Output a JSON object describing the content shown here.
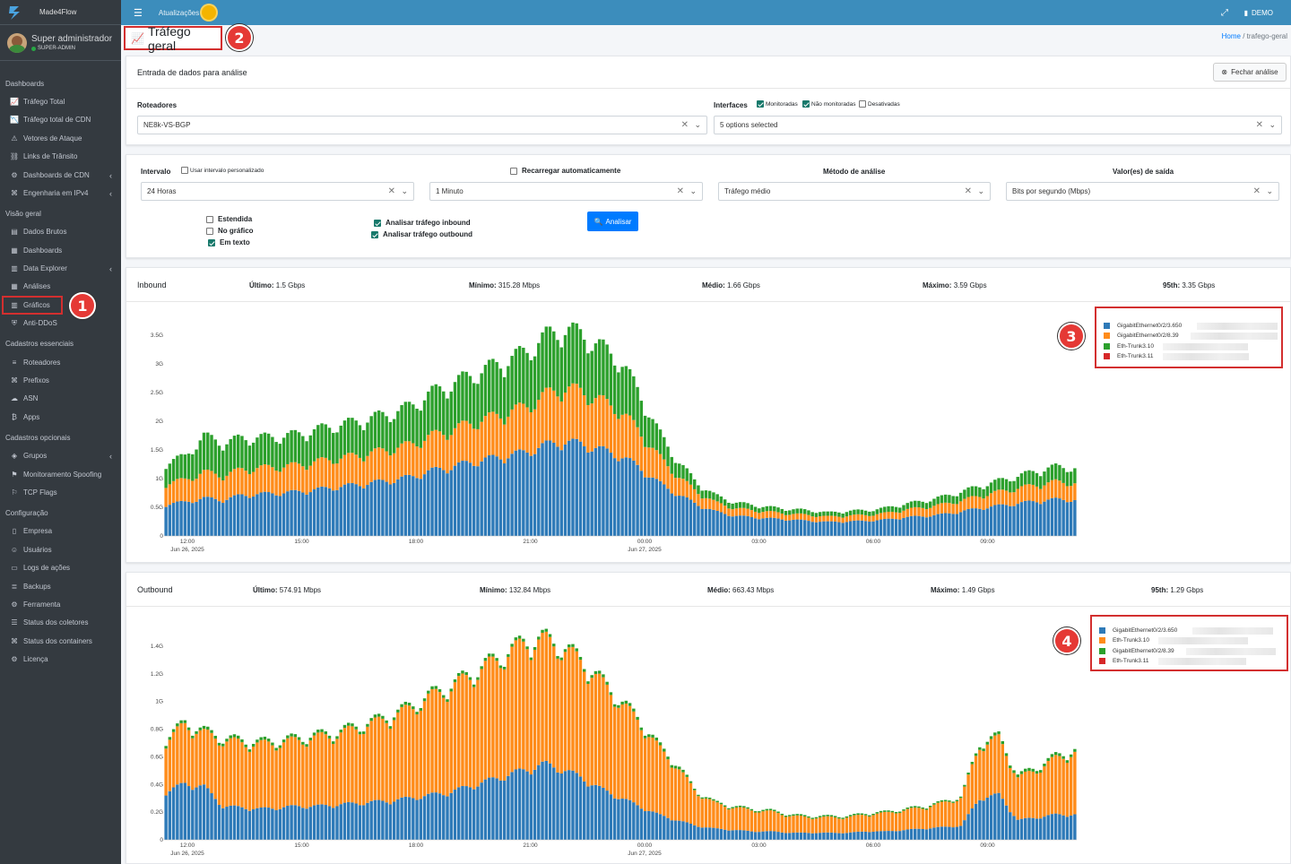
{
  "app": {
    "brand": "Made4Flow"
  },
  "user": {
    "name": "Super administrador",
    "role": "SUPER-ADMIN"
  },
  "sidebar": {
    "sections": [
      {
        "title": "Dashboards",
        "items": [
          {
            "label": "Tráfego Total",
            "icon": "area-chart-icon"
          },
          {
            "label": "Tráfego total de CDN",
            "icon": "chart-line-icon"
          },
          {
            "label": "Vetores de Ataque",
            "icon": "warning-icon"
          },
          {
            "label": "Links de Trânsito",
            "icon": "network-icon"
          },
          {
            "label": "Dashboards de CDN",
            "icon": "cdn-icon",
            "has_children": true
          },
          {
            "label": "Engenharia em IPv4",
            "icon": "sitemap-icon",
            "has_children": true
          }
        ]
      },
      {
        "title": "Visão geral",
        "items": [
          {
            "label": "Dados Brutos",
            "icon": "file-icon"
          },
          {
            "label": "Dashboards",
            "icon": "calendar-icon"
          },
          {
            "label": "Data Explorer",
            "icon": "table-icon",
            "has_children": true
          },
          {
            "label": "Análises",
            "icon": "grid-icon"
          },
          {
            "label": "Gráficos",
            "icon": "bar-chart-icon"
          },
          {
            "label": "Anti-DDoS",
            "icon": "shield-icon"
          }
        ]
      },
      {
        "title": "Cadastros essenciais",
        "items": [
          {
            "label": "Roteadores",
            "icon": "server-icon"
          },
          {
            "label": "Prefixos",
            "icon": "sitemap-icon"
          },
          {
            "label": "ASN",
            "icon": "cloud-icon"
          },
          {
            "label": "Apps",
            "icon": "bitcoin-icon"
          }
        ]
      },
      {
        "title": "Cadastros opcionais",
        "items": [
          {
            "label": "Grupos",
            "icon": "layers-icon",
            "has_children": true
          },
          {
            "label": "Monitoramento Spoofing",
            "icon": "spoof-icon"
          },
          {
            "label": "TCP Flags",
            "icon": "flag-icon"
          }
        ]
      },
      {
        "title": "Configuração",
        "items": [
          {
            "label": "Empresa",
            "icon": "building-icon"
          },
          {
            "label": "Usuários",
            "icon": "user-icon"
          },
          {
            "label": "Logs de ações",
            "icon": "folder-icon"
          },
          {
            "label": "Backups",
            "icon": "database-icon"
          },
          {
            "label": "Ferramenta",
            "icon": "gear-icon"
          },
          {
            "label": "Status dos coletores",
            "icon": "list-icon"
          },
          {
            "label": "Status dos containers",
            "icon": "sitemap-icon"
          },
          {
            "label": "Licença",
            "icon": "gear-icon"
          }
        ]
      }
    ]
  },
  "topbar": {
    "updates_label": "Atualizações",
    "account": "DEMO"
  },
  "page": {
    "title": "Tráfego geral",
    "breadcrumb_home": "Home",
    "breadcrumb_current": "trafego-geral"
  },
  "badges": [
    "1",
    "2",
    "3",
    "4"
  ],
  "form": {
    "card_title": "Entrada de dados para análise",
    "close_label": "Fechar análise",
    "routers_label": "Roteadores",
    "routers_value": "NE8k-VS-BGP",
    "interfaces_label": "Interfaces",
    "interfaces_monitored": "Monitoradas",
    "interfaces_not_monitored": "Não monitoradas",
    "interfaces_disabled": "Desativadas",
    "interfaces_value": "5 options selected",
    "interval_label": "Intervalo",
    "custom_interval": "Usar intervalo personalizado",
    "interval_value": "24 Horas",
    "reload_label": "Recarregar automaticamente",
    "reload_value": "1 Minuto",
    "method_label": "Método de análise",
    "method_value": "Tráfego médio",
    "output_label": "Valor(es) de saída",
    "output_value": "Bits por segundo (Mbps)",
    "opt_extended": "Estendida",
    "opt_in_chart": "No gráfico",
    "opt_in_text": "Em texto",
    "opt_inbound": "Analisar tráfego inbound",
    "opt_outbound": "Analisar tráfego outbound",
    "analyze_label": "Analisar"
  },
  "inbound": {
    "title": "Inbound",
    "stats": [
      {
        "label": "Último:",
        "value": "1.5 Gbps"
      },
      {
        "label": "Mínimo:",
        "value": "315.28 Mbps"
      },
      {
        "label": "Médio:",
        "value": "1.66 Gbps"
      },
      {
        "label": "Máximo:",
        "value": "3.59 Gbps"
      },
      {
        "label": "95th:",
        "value": "3.35 Gbps"
      }
    ],
    "legend": [
      "GigabitEthernet0/2/3.650",
      "GigabitEthernet0/2/8.39",
      "Eth-Trunk3.10",
      "Eth-Trunk3.11"
    ]
  },
  "outbound": {
    "title": "Outbound",
    "stats": [
      {
        "label": "Último:",
        "value": "574.91 Mbps"
      },
      {
        "label": "Mínimo:",
        "value": "132.84 Mbps"
      },
      {
        "label": "Médio:",
        "value": "663.43 Mbps"
      },
      {
        "label": "Máximo:",
        "value": "1.49 Gbps"
      },
      {
        "label": "95th:",
        "value": "1.29 Gbps"
      }
    ],
    "legend": [
      "GigabitEthernet0/2/3.650",
      "Eth-Trunk3.10",
      "GigabitEthernet0/2/8.39",
      "Eth-Trunk3.11"
    ]
  },
  "colors": {
    "blue": "#2e7ab8",
    "orange": "#ff8c1a",
    "green": "#2ca02c",
    "red": "#d62728"
  },
  "chart_data": [
    {
      "type": "bar",
      "stacked": true,
      "title": "Inbound",
      "x_ticks": [
        "12:00",
        "15:00",
        "18:00",
        "21:00",
        "00:00",
        "03:00",
        "06:00",
        "09:00"
      ],
      "date_labels": [
        "Jun 26, 2025",
        "Jun 27, 2025"
      ],
      "y_ticks": [
        "0",
        "0.5G",
        "1G",
        "1.5G",
        "2G",
        "2.5G",
        "3G",
        "3.5G"
      ],
      "ylim": [
        0,
        3.5
      ],
      "unit": "Gbps",
      "x": [
        "11:00",
        "11:30",
        "12:00",
        "12:30",
        "13:00",
        "13:30",
        "14:00",
        "14:30",
        "15:00",
        "15:30",
        "16:00",
        "16:30",
        "17:00",
        "17:30",
        "18:00",
        "18:30",
        "19:00",
        "19:30",
        "20:00",
        "20:30",
        "21:00",
        "21:30",
        "22:00",
        "22:30",
        "23:00",
        "23:30",
        "00:00",
        "00:30",
        "01:00",
        "01:30",
        "02:00",
        "02:30",
        "03:00",
        "03:30",
        "04:00",
        "04:30",
        "05:00",
        "05:30",
        "06:00",
        "06:30",
        "07:00",
        "07:30",
        "08:00",
        "08:30",
        "09:00",
        "09:30",
        "10:00",
        "10:30",
        "11:00"
      ],
      "series": [
        {
          "name": "GigabitEthernet0/2/3.650",
          "color": "#2e7ab8",
          "values": [
            0.55,
            0.58,
            0.65,
            0.62,
            0.7,
            0.72,
            0.74,
            0.76,
            0.8,
            0.84,
            0.88,
            0.92,
            0.96,
            1.02,
            1.12,
            1.18,
            1.26,
            1.32,
            1.38,
            1.44,
            1.56,
            1.62,
            1.58,
            1.48,
            1.38,
            1.18,
            0.92,
            0.72,
            0.55,
            0.42,
            0.35,
            0.32,
            0.3,
            0.28,
            0.26,
            0.24,
            0.25,
            0.26,
            0.28,
            0.32,
            0.34,
            0.37,
            0.42,
            0.48,
            0.52,
            0.56,
            0.6,
            0.63,
            0.62
          ]
        },
        {
          "name": "GigabitEthernet0/2/8.39",
          "color": "#ff8c1a",
          "values": [
            0.36,
            0.38,
            0.45,
            0.42,
            0.44,
            0.45,
            0.45,
            0.46,
            0.48,
            0.49,
            0.5,
            0.52,
            0.54,
            0.56,
            0.6,
            0.63,
            0.67,
            0.7,
            0.74,
            0.78,
            0.86,
            0.92,
            0.9,
            0.84,
            0.78,
            0.62,
            0.46,
            0.32,
            0.22,
            0.16,
            0.13,
            0.12,
            0.11,
            0.1,
            0.1,
            0.09,
            0.1,
            0.1,
            0.11,
            0.13,
            0.15,
            0.17,
            0.19,
            0.21,
            0.24,
            0.26,
            0.28,
            0.3,
            0.29
          ]
        },
        {
          "name": "Eth-Trunk3.10",
          "color": "#2ca02c",
          "values": [
            0.36,
            0.4,
            0.62,
            0.56,
            0.54,
            0.52,
            0.52,
            0.53,
            0.55,
            0.57,
            0.58,
            0.6,
            0.62,
            0.66,
            0.74,
            0.78,
            0.82,
            0.86,
            0.9,
            0.94,
            1.0,
            1.02,
            0.98,
            0.92,
            0.86,
            0.66,
            0.42,
            0.26,
            0.16,
            0.12,
            0.1,
            0.09,
            0.08,
            0.08,
            0.08,
            0.07,
            0.08,
            0.08,
            0.09,
            0.1,
            0.11,
            0.13,
            0.15,
            0.17,
            0.19,
            0.21,
            0.24,
            0.26,
            0.26
          ]
        },
        {
          "name": "Eth-Trunk3.11",
          "color": "#d62728",
          "values": [
            0,
            0,
            0,
            0,
            0,
            0,
            0,
            0,
            0,
            0,
            0,
            0,
            0,
            0,
            0,
            0,
            0,
            0,
            0,
            0,
            0,
            0,
            0,
            0,
            0,
            0,
            0,
            0,
            0,
            0,
            0,
            0,
            0,
            0,
            0,
            0,
            0,
            0,
            0,
            0,
            0,
            0,
            0,
            0,
            0,
            0,
            0,
            0,
            0
          ]
        }
      ]
    },
    {
      "type": "bar",
      "stacked": true,
      "title": "Outbound",
      "x_ticks": [
        "12:00",
        "15:00",
        "18:00",
        "21:00",
        "00:00",
        "03:00",
        "06:00",
        "09:00"
      ],
      "date_labels": [
        "Jun 26, 2025",
        "Jun 27, 2025"
      ],
      "y_ticks": [
        "0",
        "0.2G",
        "0.4G",
        "0.6G",
        "0.8G",
        "1G",
        "1.2G",
        "1.4G"
      ],
      "ylim": [
        0,
        1.4
      ],
      "unit": "Gbps",
      "x": [
        "11:00",
        "11:30",
        "12:00",
        "12:30",
        "13:00",
        "13:30",
        "14:00",
        "14:30",
        "15:00",
        "15:30",
        "16:00",
        "16:30",
        "17:00",
        "17:30",
        "18:00",
        "18:30",
        "19:00",
        "19:30",
        "20:00",
        "20:30",
        "21:00",
        "21:30",
        "22:00",
        "22:30",
        "23:00",
        "23:30",
        "00:00",
        "00:30",
        "01:00",
        "01:30",
        "02:00",
        "02:30",
        "03:00",
        "03:30",
        "04:00",
        "04:30",
        "05:00",
        "05:30",
        "06:00",
        "06:30",
        "07:00",
        "07:30",
        "08:00",
        "08:30",
        "09:00",
        "09:30",
        "10:00",
        "10:30",
        "11:00"
      ],
      "series": [
        {
          "name": "GigabitEthernet0/2/3.650",
          "color": "#2e7ab8",
          "values": [
            0.34,
            0.4,
            0.38,
            0.24,
            0.23,
            0.22,
            0.23,
            0.24,
            0.24,
            0.25,
            0.26,
            0.27,
            0.28,
            0.3,
            0.32,
            0.34,
            0.38,
            0.42,
            0.46,
            0.5,
            0.54,
            0.5,
            0.44,
            0.36,
            0.3,
            0.24,
            0.18,
            0.14,
            0.1,
            0.08,
            0.07,
            0.06,
            0.06,
            0.05,
            0.05,
            0.05,
            0.05,
            0.06,
            0.06,
            0.07,
            0.08,
            0.09,
            0.1,
            0.3,
            0.32,
            0.14,
            0.16,
            0.18,
            0.18
          ]
        },
        {
          "name": "Eth-Trunk3.10",
          "color": "#ff8c1a",
          "values": [
            0.36,
            0.42,
            0.38,
            0.47,
            0.46,
            0.46,
            0.46,
            0.47,
            0.49,
            0.5,
            0.53,
            0.56,
            0.6,
            0.64,
            0.7,
            0.74,
            0.78,
            0.82,
            0.86,
            0.9,
            0.88,
            0.86,
            0.82,
            0.76,
            0.68,
            0.6,
            0.48,
            0.38,
            0.24,
            0.18,
            0.16,
            0.15,
            0.14,
            0.12,
            0.11,
            0.11,
            0.11,
            0.12,
            0.13,
            0.14,
            0.15,
            0.17,
            0.2,
            0.38,
            0.4,
            0.3,
            0.34,
            0.4,
            0.44
          ]
        },
        {
          "name": "GigabitEthernet0/2/8.39",
          "color": "#2ca02c",
          "values": [
            0.02,
            0.02,
            0.02,
            0.02,
            0.02,
            0.02,
            0.02,
            0.02,
            0.02,
            0.02,
            0.02,
            0.02,
            0.02,
            0.02,
            0.02,
            0.02,
            0.02,
            0.02,
            0.02,
            0.02,
            0.02,
            0.02,
            0.02,
            0.02,
            0.02,
            0.02,
            0.02,
            0.02,
            0.01,
            0.01,
            0.01,
            0.01,
            0.01,
            0.01,
            0.01,
            0.01,
            0.01,
            0.01,
            0.01,
            0.01,
            0.01,
            0.01,
            0.01,
            0.02,
            0.02,
            0.02,
            0.02,
            0.02,
            0.02
          ]
        },
        {
          "name": "Eth-Trunk3.11",
          "color": "#d62728",
          "values": [
            0,
            0,
            0,
            0,
            0,
            0,
            0,
            0,
            0,
            0,
            0,
            0,
            0,
            0,
            0,
            0,
            0,
            0,
            0,
            0,
            0,
            0,
            0,
            0,
            0,
            0,
            0,
            0,
            0,
            0,
            0,
            0,
            0,
            0,
            0,
            0,
            0,
            0,
            0,
            0,
            0,
            0,
            0,
            0,
            0,
            0,
            0,
            0,
            0
          ]
        }
      ]
    }
  ]
}
